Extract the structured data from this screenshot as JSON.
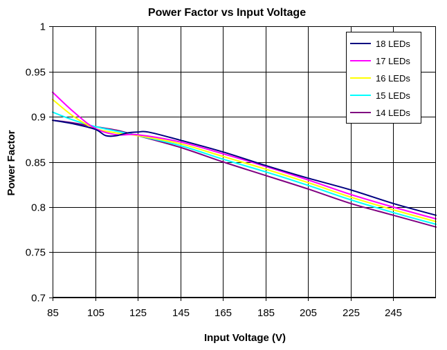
{
  "chart_data": {
    "type": "line",
    "title": "Power Factor vs Input Voltage",
    "xlabel": "Input Voltage (V)",
    "ylabel": "Power Factor",
    "xlim": [
      85,
      265
    ],
    "ylim": [
      0.7,
      1.0
    ],
    "x_ticks": [
      "85",
      "105",
      "125",
      "145",
      "165",
      "185",
      "205",
      "225",
      "245"
    ],
    "y_ticks": [
      "0.7",
      "0.75",
      "0.8",
      "0.85",
      "0.9",
      "0.95",
      "1"
    ],
    "grid": true,
    "legend_position": "top-right",
    "series": [
      {
        "name": "18 LEDs",
        "color": "#000080",
        "points": [
          [
            85,
            0.896
          ],
          [
            95,
            0.892
          ],
          [
            105,
            0.886
          ],
          [
            110,
            0.879
          ],
          [
            115,
            0.879
          ],
          [
            120,
            0.882
          ],
          [
            125,
            0.883
          ],
          [
            130,
            0.883
          ],
          [
            145,
            0.874
          ],
          [
            165,
            0.861
          ],
          [
            185,
            0.846
          ],
          [
            205,
            0.832
          ],
          [
            225,
            0.819
          ],
          [
            245,
            0.804
          ],
          [
            265,
            0.791
          ]
        ]
      },
      {
        "name": "17 LEDs",
        "color": "#ff00ff",
        "points": [
          [
            85,
            0.927
          ],
          [
            95,
            0.905
          ],
          [
            105,
            0.887
          ],
          [
            115,
            0.88
          ],
          [
            125,
            0.88
          ],
          [
            145,
            0.872
          ],
          [
            165,
            0.859
          ],
          [
            185,
            0.845
          ],
          [
            205,
            0.83
          ],
          [
            225,
            0.814
          ],
          [
            245,
            0.8
          ],
          [
            265,
            0.787
          ]
        ]
      },
      {
        "name": "16 LEDs",
        "color": "#ffff00",
        "points": [
          [
            85,
            0.919
          ],
          [
            95,
            0.9
          ],
          [
            105,
            0.887
          ],
          [
            115,
            0.882
          ],
          [
            125,
            0.879
          ],
          [
            145,
            0.87
          ],
          [
            165,
            0.856
          ],
          [
            185,
            0.842
          ],
          [
            205,
            0.827
          ],
          [
            225,
            0.811
          ],
          [
            245,
            0.797
          ],
          [
            265,
            0.784
          ]
        ]
      },
      {
        "name": "15 LEDs",
        "color": "#00ffff",
        "points": [
          [
            85,
            0.905
          ],
          [
            95,
            0.896
          ],
          [
            105,
            0.889
          ],
          [
            115,
            0.884
          ],
          [
            125,
            0.879
          ],
          [
            145,
            0.868
          ],
          [
            165,
            0.853
          ],
          [
            185,
            0.839
          ],
          [
            205,
            0.824
          ],
          [
            225,
            0.808
          ],
          [
            245,
            0.794
          ],
          [
            265,
            0.781
          ]
        ]
      },
      {
        "name": "14 LEDs",
        "color": "#800080",
        "points": [
          [
            85,
            0.896
          ],
          [
            95,
            0.893
          ],
          [
            105,
            0.889
          ],
          [
            115,
            0.885
          ],
          [
            125,
            0.879
          ],
          [
            145,
            0.866
          ],
          [
            165,
            0.85
          ],
          [
            185,
            0.835
          ],
          [
            205,
            0.82
          ],
          [
            225,
            0.804
          ],
          [
            245,
            0.791
          ],
          [
            265,
            0.778
          ]
        ]
      }
    ]
  }
}
